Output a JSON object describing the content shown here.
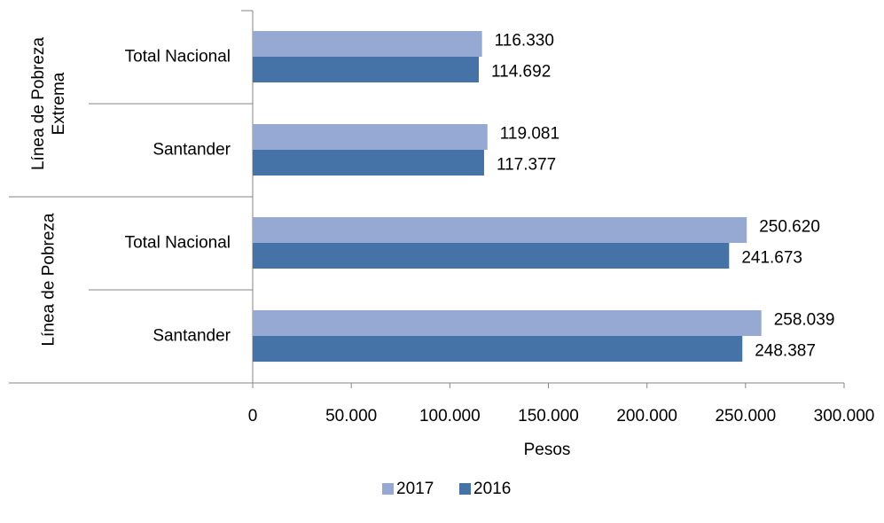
{
  "chart_data": {
    "type": "bar",
    "groups": [
      {
        "name": "Línea de Pobreza Extrema",
        "categories": [
          "Total Nacional",
          "Santander"
        ]
      },
      {
        "name": "Línea de Pobreza",
        "categories": [
          "Total Nacional",
          "Santander"
        ]
      }
    ],
    "series": [
      {
        "name": "2017",
        "color": "#95a9d2",
        "values": [
          116330,
          119081,
          250620,
          258039
        ],
        "value_labels": [
          "116.330",
          "119.081",
          "250.620",
          "258.039"
        ]
      },
      {
        "name": "2016",
        "color": "#4572a7",
        "values": [
          114692,
          117377,
          241673,
          248387
        ],
        "value_labels": [
          "114.692",
          "117.377",
          "241.673",
          "248.387"
        ]
      }
    ],
    "xlabel": "Pesos",
    "xlim": [
      0,
      300000
    ],
    "xticks": [
      0,
      {
        "value": 50000,
        "label": "50.000"
      },
      {
        "value": 100000,
        "label": "100.000"
      },
      {
        "value": 150000,
        "label": "150.000"
      },
      {
        "value": 200000,
        "label": "200.000"
      },
      {
        "value": 250000,
        "label": "250.000"
      },
      {
        "value": 300000,
        "label": "300.000"
      }
    ],
    "legend": "bottom"
  }
}
